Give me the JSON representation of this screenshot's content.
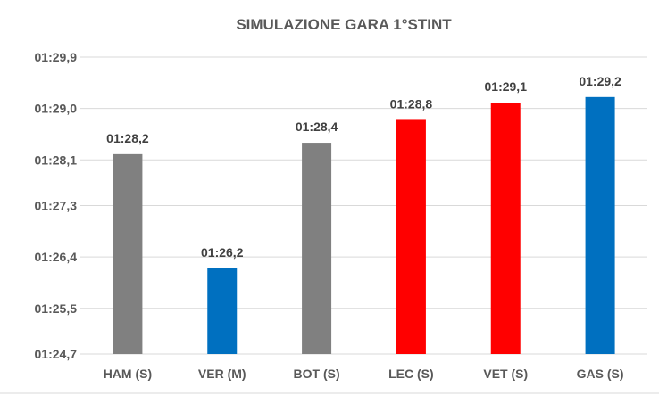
{
  "chart_data": {
    "type": "bar",
    "title": "SIMULAZIONE GARA 1°STINT",
    "xlabel": "",
    "ylabel": "",
    "categories": [
      "HAM (S)",
      "VER (M)",
      "BOT (S)",
      "LEC (S)",
      "VET (S)",
      "GAS (S)"
    ],
    "values": [
      88.2,
      86.2,
      88.4,
      88.8,
      89.1,
      89.2
    ],
    "value_labels": [
      "01:28,2",
      "01:26,2",
      "01:28,4",
      "01:28,8",
      "01:29,1",
      "01:29,2"
    ],
    "bar_colors": [
      "#808080",
      "#0070c0",
      "#808080",
      "#ff0000",
      "#ff0000",
      "#0070c0"
    ],
    "yticks": [
      84.7,
      85.5,
      86.4,
      87.3,
      88.1,
      89.0,
      89.9
    ],
    "ytick_labels": [
      "01:24,7",
      "01:25,5",
      "01:26,4",
      "01:27,3",
      "01:28,1",
      "01:29,0",
      "01:29,9"
    ],
    "ylim": [
      84.7,
      89.9
    ],
    "grid": true,
    "legend": "none"
  }
}
